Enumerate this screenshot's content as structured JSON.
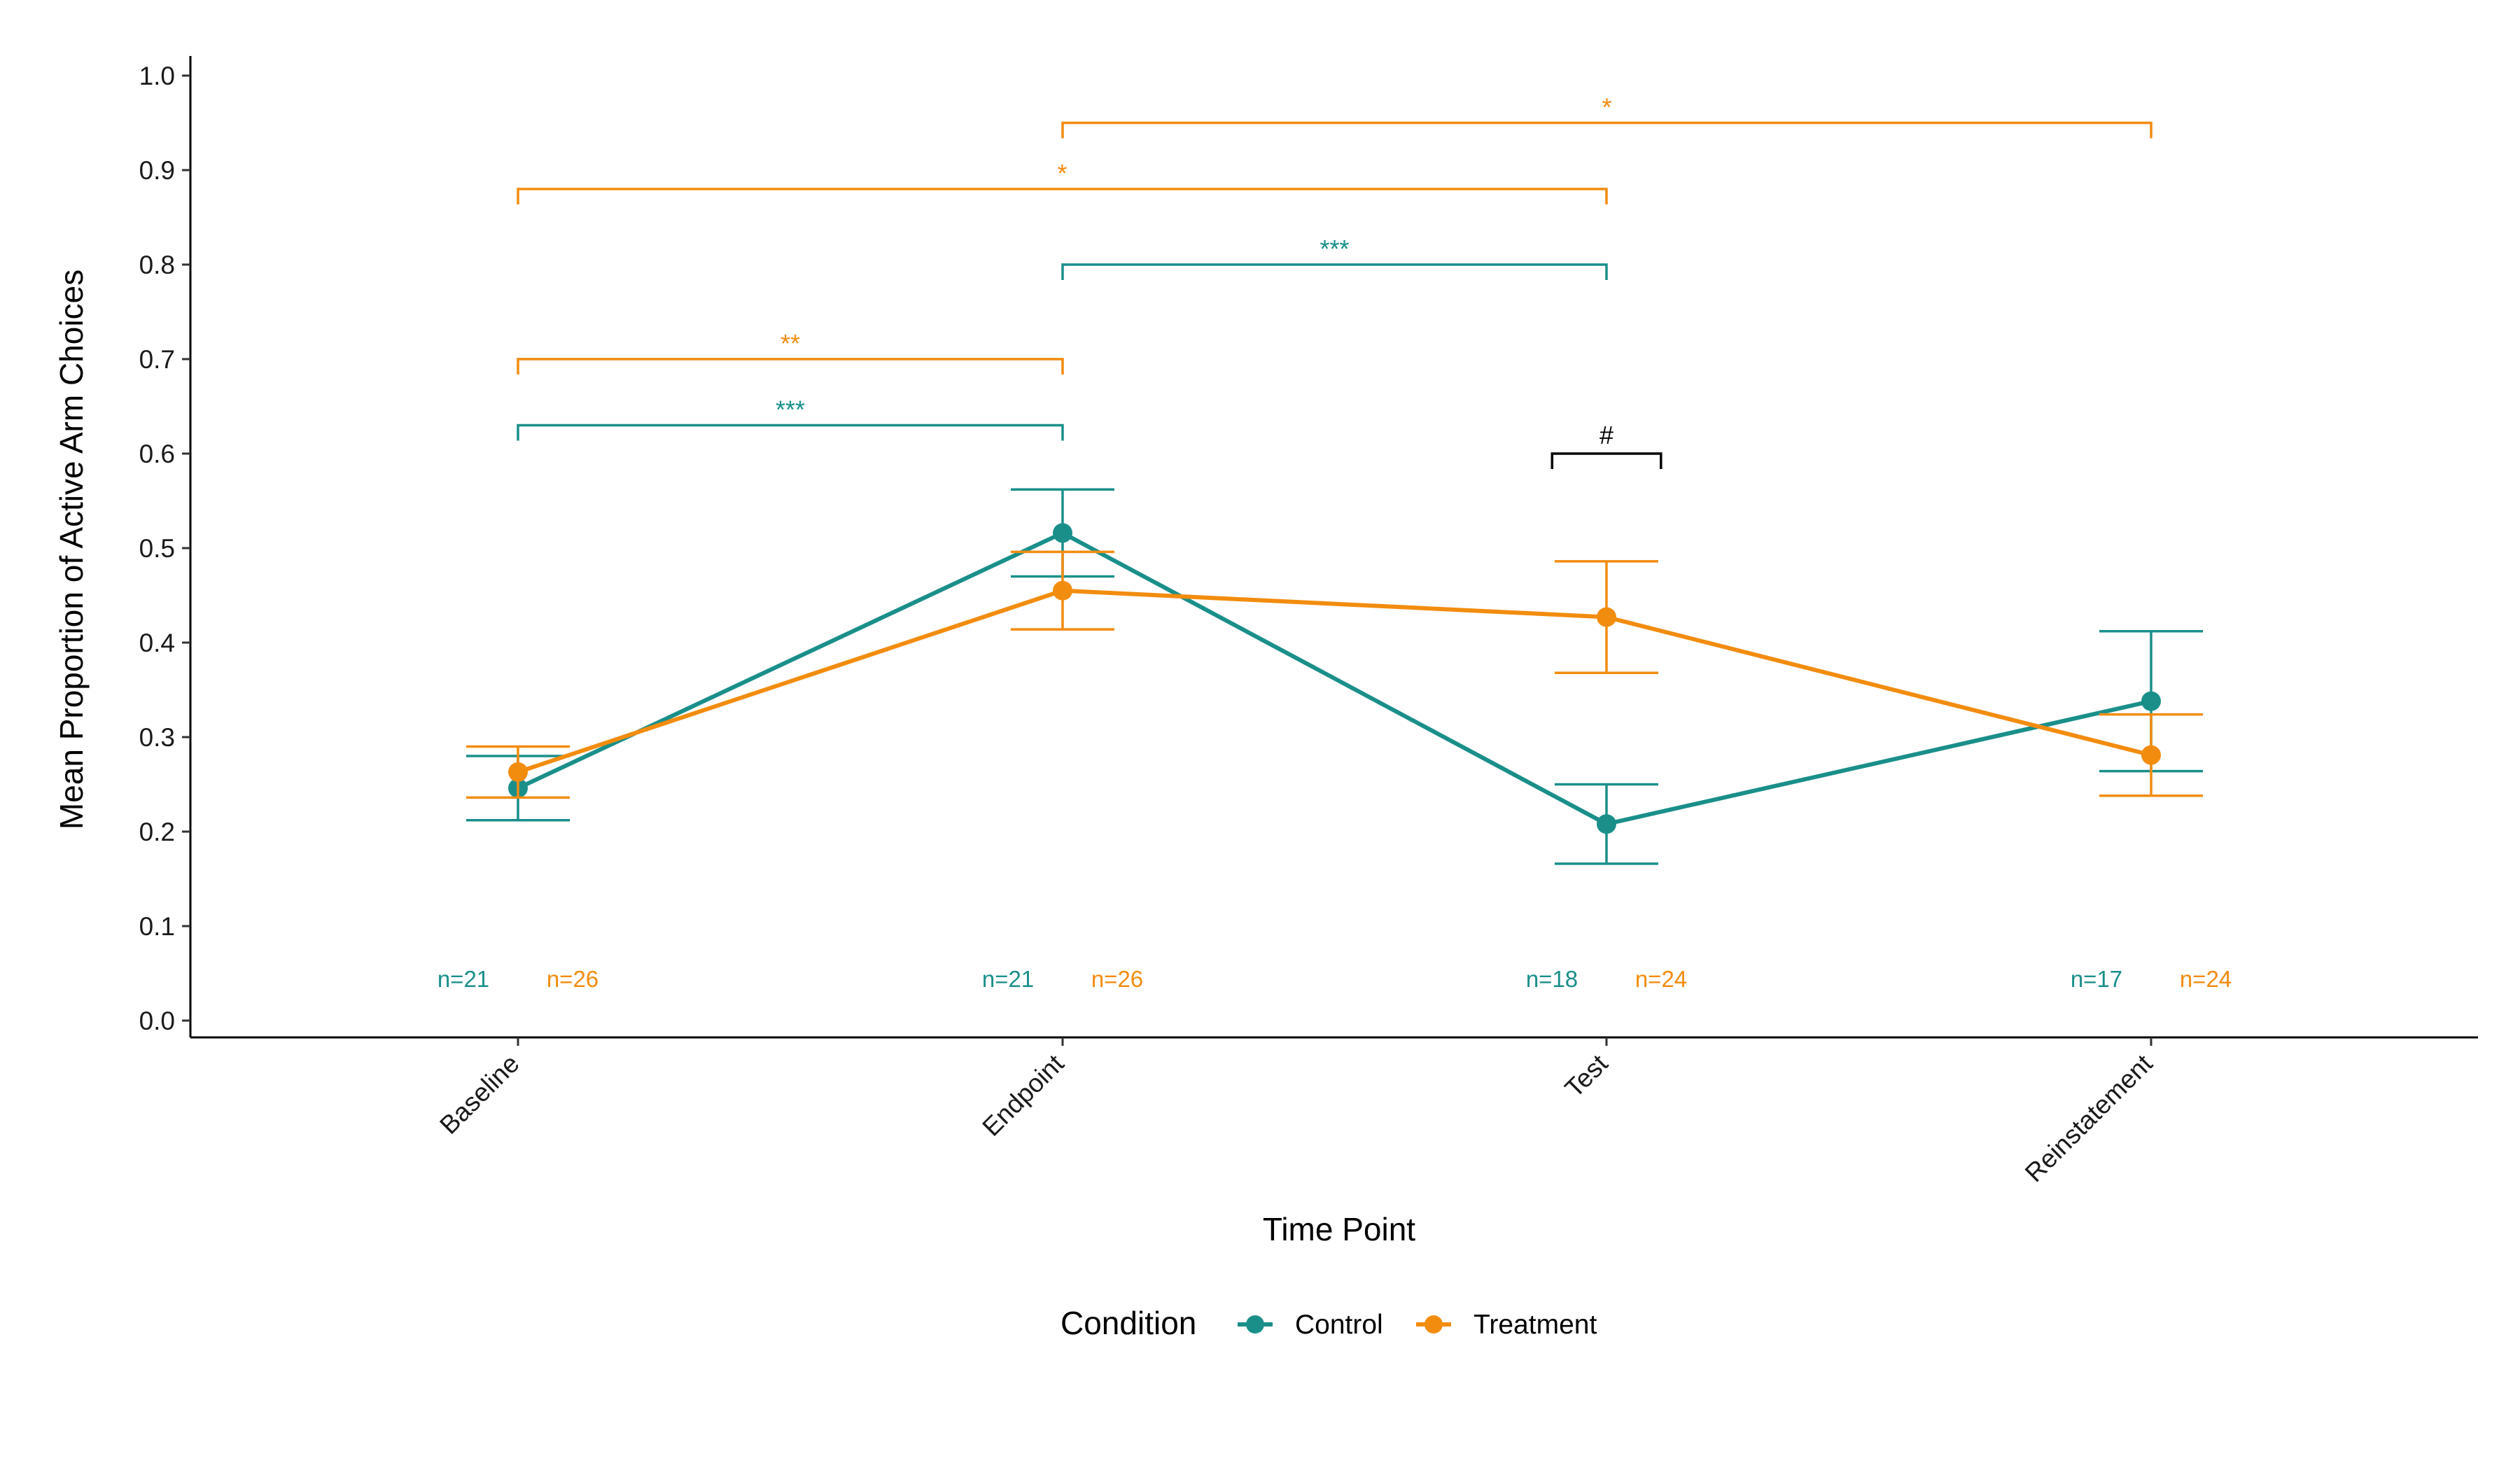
{
  "chart_data": {
    "type": "line",
    "title": "",
    "xlabel": "Time Point",
    "ylabel": "Mean Proportion of Active Arm Choices",
    "categories": [
      "Baseline",
      "Endpoint",
      "Test",
      "Reinstatement"
    ],
    "ylim": [
      0,
      1.0
    ],
    "yticks": [
      "0.0",
      "0.1",
      "0.2",
      "0.3",
      "0.4",
      "0.5",
      "0.6",
      "0.7",
      "0.8",
      "0.9",
      "1.0"
    ],
    "grid": false,
    "series": [
      {
        "name": "Control",
        "color": "#1a8f8a",
        "values": [
          0.246,
          0.516,
          0.208,
          0.338
        ],
        "lower": [
          0.212,
          0.47,
          0.166,
          0.264
        ],
        "upper": [
          0.28,
          0.562,
          0.25,
          0.412
        ],
        "n": [
          "n=21",
          "n=21",
          "n=18",
          "n=17"
        ]
      },
      {
        "name": "Treatment",
        "color": "#f28c0f",
        "values": [
          0.263,
          0.455,
          0.427,
          0.281
        ],
        "lower": [
          0.236,
          0.414,
          0.368,
          0.238
        ],
        "upper": [
          0.29,
          0.496,
          0.486,
          0.324
        ],
        "n": [
          "n=26",
          "n=26",
          "n=24",
          "n=24"
        ]
      }
    ],
    "significance": [
      {
        "from": 0,
        "to": 1,
        "y": 0.63,
        "label": "***",
        "color": "#1a8f8a"
      },
      {
        "from": 0,
        "to": 1,
        "y": 0.7,
        "label": "**",
        "color": "#f28c0f"
      },
      {
        "from": 1,
        "to": 2,
        "y": 0.8,
        "label": "***",
        "color": "#1a8f8a"
      },
      {
        "from": 0,
        "to": 2,
        "y": 0.88,
        "label": "*",
        "color": "#f28c0f"
      },
      {
        "from": 1,
        "to": 3,
        "y": 0.95,
        "label": "*",
        "color": "#f28c0f"
      },
      {
        "from": 1.9,
        "to": 2.1,
        "y": 0.6,
        "label": "#",
        "color": "#000000"
      }
    ],
    "legend": {
      "title": "Condition",
      "placement": "bottom",
      "items": [
        "Control",
        "Treatment"
      ]
    }
  }
}
